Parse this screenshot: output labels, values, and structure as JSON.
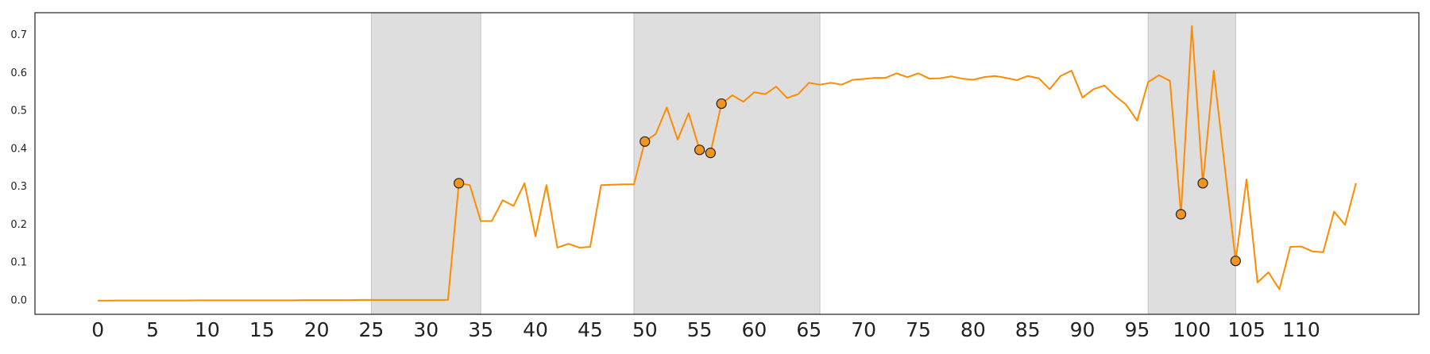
{
  "chart_data": {
    "type": "line",
    "x": [
      0,
      1,
      2,
      3,
      4,
      5,
      6,
      7,
      8,
      9,
      10,
      11,
      12,
      13,
      14,
      15,
      16,
      17,
      18,
      19,
      20,
      21,
      22,
      23,
      24,
      25,
      26,
      27,
      28,
      29,
      30,
      31,
      32,
      33,
      34,
      35,
      36,
      37,
      38,
      39,
      40,
      41,
      42,
      43,
      44,
      45,
      46,
      47,
      48,
      49,
      50,
      51,
      52,
      53,
      54,
      55,
      56,
      57,
      58,
      59,
      60,
      61,
      62,
      63,
      64,
      65,
      66,
      67,
      68,
      69,
      70,
      71,
      72,
      73,
      74,
      75,
      76,
      77,
      78,
      79,
      80,
      81,
      82,
      83,
      84,
      85,
      86,
      87,
      88,
      89,
      90,
      91,
      92,
      93,
      94,
      95,
      96,
      97,
      98,
      99,
      100,
      101,
      102,
      103,
      104,
      105,
      106,
      107,
      108,
      109,
      110,
      111,
      112,
      113,
      114,
      115
    ],
    "series": [
      {
        "color": "#ff8c00",
        "values": [
          0,
          0,
          0.0005,
          0.0005,
          0.0005,
          0.0005,
          0.0005,
          0.0005,
          0.0005,
          0.001,
          0.001,
          0.001,
          0.001,
          0.001,
          0.001,
          0.001,
          0.001,
          0.001,
          0.001,
          0.0015,
          0.0015,
          0.0015,
          0.0015,
          0.0015,
          0.002,
          0.002,
          0.002,
          0.002,
          0.002,
          0.002,
          0.002,
          0.002,
          0.002,
          0.31,
          0.305,
          0.21,
          0.21,
          0.265,
          0.25,
          0.31,
          0.17,
          0.305,
          0.14,
          0.15,
          0.14,
          0.142,
          0.305,
          0.306,
          0.307,
          0.307,
          0.42,
          0.44,
          0.51,
          0.425,
          0.495,
          0.398,
          0.39,
          0.52,
          0.542,
          0.525,
          0.55,
          0.545,
          0.565,
          0.535,
          0.545,
          0.575,
          0.57,
          0.575,
          0.57,
          0.583,
          0.585,
          0.588,
          0.588,
          0.6,
          0.59,
          0.6,
          0.586,
          0.587,
          0.592,
          0.586,
          0.583,
          0.59,
          0.593,
          0.588,
          0.582,
          0.593,
          0.587,
          0.558,
          0.593,
          0.607,
          0.536,
          0.558,
          0.568,
          0.54,
          0.517,
          0.475,
          0.577,
          0.595,
          0.58,
          0.228,
          0.725,
          0.31,
          0.607,
          0.355,
          0.105,
          0.32,
          0.048,
          0.075,
          0.03,
          0.142,
          0.143,
          0.13,
          0.128,
          0.235,
          0.2,
          0.31
        ]
      }
    ],
    "markers": {
      "color": "#f0961e",
      "x": [
        33,
        50,
        55,
        56,
        57,
        99,
        101,
        104
      ],
      "values": [
        0.31,
        0.42,
        0.398,
        0.39,
        0.52,
        0.228,
        0.31,
        0.105
      ]
    },
    "spans": [
      [
        25,
        35
      ],
      [
        49,
        66
      ],
      [
        96,
        104
      ]
    ],
    "span_color": "#dedede",
    "xlim": [
      -5.75,
      120.75
    ],
    "ylim": [
      -0.036,
      0.76
    ],
    "xticks": [
      0,
      5,
      10,
      15,
      20,
      25,
      30,
      35,
      40,
      45,
      50,
      55,
      60,
      65,
      70,
      75,
      80,
      85,
      90,
      95,
      100,
      105,
      110
    ],
    "yticks": [
      {
        "value": 0,
        "label": "0.0"
      },
      0.1,
      0.2,
      0.3,
      0.4,
      0.5,
      0.6,
      0.7
    ]
  }
}
